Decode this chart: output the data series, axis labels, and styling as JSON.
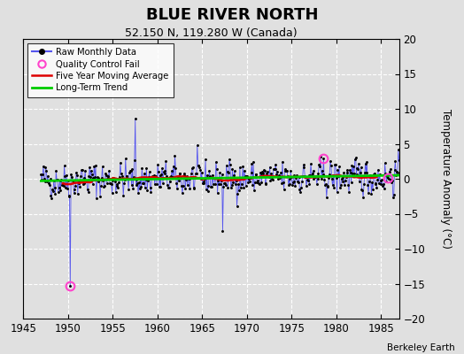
{
  "title": "BLUE RIVER NORTH",
  "subtitle": "52.150 N, 119.280 W (Canada)",
  "ylabel": "Temperature Anomaly (°C)",
  "credit": "Berkeley Earth",
  "xlim": [
    1945,
    1987
  ],
  "ylim": [
    -20,
    20
  ],
  "yticks": [
    -20,
    -15,
    -10,
    -5,
    0,
    5,
    10,
    15,
    20
  ],
  "xticks": [
    1945,
    1950,
    1955,
    1960,
    1965,
    1970,
    1975,
    1980,
    1985
  ],
  "bg_color": "#e0e0e0",
  "plot_bg_color": "#e0e0e0",
  "raw_color": "#5555ee",
  "ma_color": "#dd0000",
  "trend_color": "#00cc00",
  "qc_color": "#ff44cc",
  "seed": 42,
  "start_year": 1947.0,
  "end_year": 1987.0
}
